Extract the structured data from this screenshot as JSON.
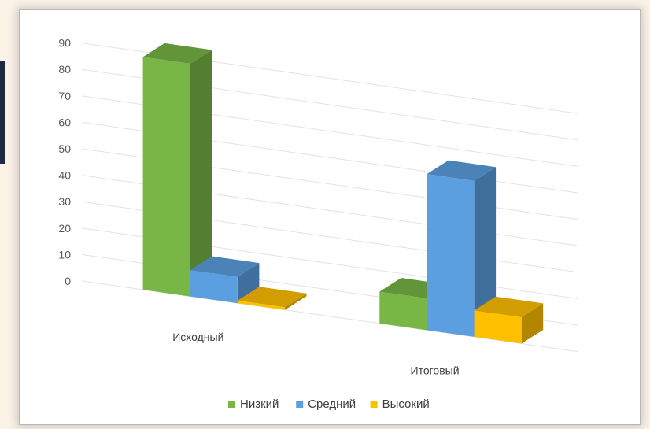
{
  "chart_data": {
    "type": "bar",
    "title": "",
    "xlabel": "",
    "ylabel": "",
    "categories": [
      "Исходный",
      "Итоговый"
    ],
    "series": [
      {
        "name": "Низкий",
        "values": [
          88,
          12
        ],
        "color": "#78b646"
      },
      {
        "name": "Средний",
        "values": [
          10,
          59
        ],
        "color": "#5c9fe0"
      },
      {
        "name": "Высокий",
        "values": [
          1,
          10
        ],
        "color": "#ffc000"
      }
    ],
    "yticks": [
      0,
      10,
      20,
      30,
      40,
      50,
      60,
      70,
      80,
      90
    ],
    "ylim": [
      0,
      90
    ],
    "grid": true,
    "legend": "bottom",
    "style": "3d-clustered-column"
  }
}
